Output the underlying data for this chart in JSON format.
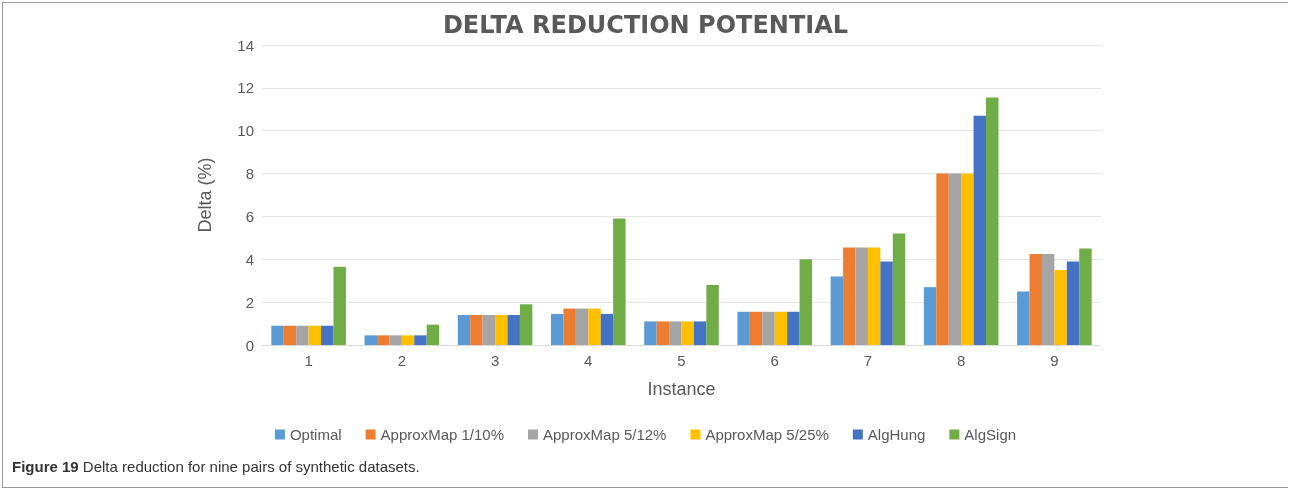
{
  "chart_data": {
    "type": "bar",
    "title": "DELTA REDUCTION POTENTIAL",
    "xlabel": "Instance",
    "ylabel": "Delta (%)",
    "categories": [
      "1",
      "2",
      "3",
      "4",
      "5",
      "6",
      "7",
      "8",
      "9"
    ],
    "series": [
      {
        "name": "Optimal",
        "color": "#5b9bd5",
        "values": [
          0.9,
          0.45,
          1.4,
          1.45,
          1.1,
          1.55,
          3.2,
          2.7,
          2.5
        ]
      },
      {
        "name": "ApproxMap 1/10%",
        "color": "#ed7d31",
        "values": [
          0.9,
          0.45,
          1.4,
          1.7,
          1.1,
          1.55,
          4.55,
          8.0,
          4.25
        ]
      },
      {
        "name": "ApproxMap 5/12%",
        "color": "#a5a5a5",
        "values": [
          0.9,
          0.45,
          1.4,
          1.7,
          1.1,
          1.55,
          4.55,
          8.0,
          4.25
        ]
      },
      {
        "name": "ApproxMap 5/25%",
        "color": "#ffc000",
        "values": [
          0.9,
          0.45,
          1.4,
          1.7,
          1.1,
          1.55,
          4.55,
          8.0,
          3.5
        ]
      },
      {
        "name": "AlgHung",
        "color": "#4472c4",
        "values": [
          0.9,
          0.45,
          1.4,
          1.45,
          1.1,
          1.55,
          3.9,
          10.7,
          3.9
        ]
      },
      {
        "name": "AlgSign",
        "color": "#70ad47",
        "values": [
          3.65,
          0.95,
          1.9,
          5.9,
          2.8,
          4.0,
          5.2,
          11.55,
          4.5
        ]
      }
    ],
    "ylim": [
      0,
      14
    ],
    "yticks": [
      0,
      2,
      4,
      6,
      8,
      10,
      12,
      14
    ],
    "grid": "y",
    "legend": "bottom",
    "annotations": [
      "Figure 19 Delta reduction for nine pairs of synthetic datasets."
    ]
  }
}
